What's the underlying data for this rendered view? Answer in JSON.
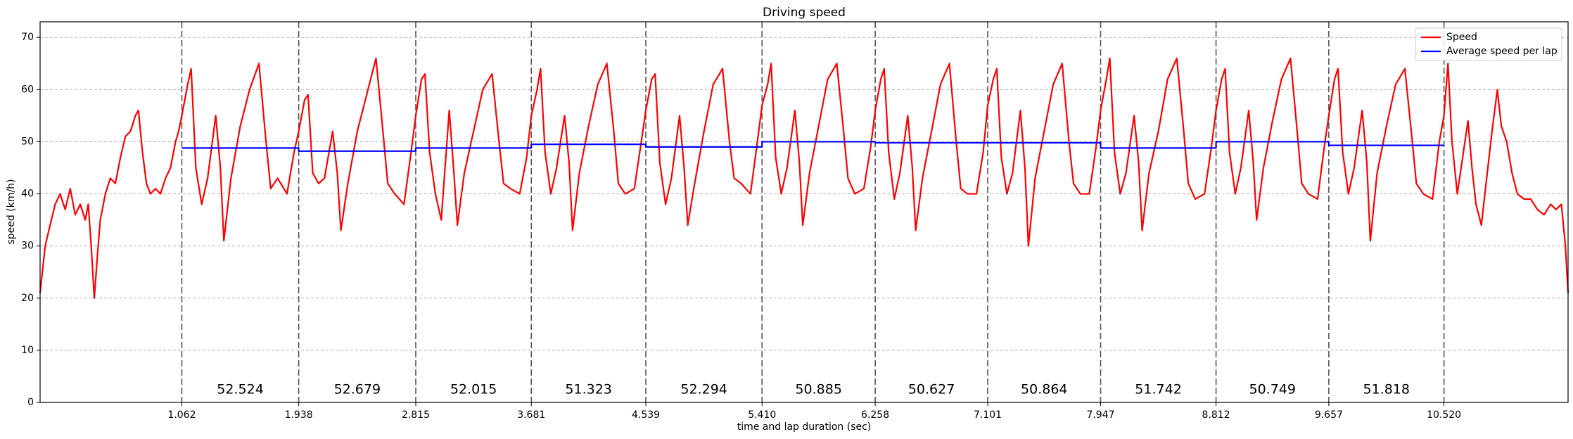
{
  "chart_data": {
    "type": "line",
    "title": "Driving speed",
    "x_label": "time and lap duration (sec)",
    "y_label": "speed (km/h)",
    "xlim": [
      0,
      11.45
    ],
    "ylim": [
      0,
      73
    ],
    "xticks": [
      1.062,
      1.938,
      2.815,
      3.681,
      4.539,
      {
        "value": 5.41,
        "label": "5.410"
      },
      6.258,
      7.101,
      7.947,
      8.812,
      9.657,
      {
        "value": 10.52,
        "label": "10.520"
      }
    ],
    "yticks": [
      0,
      10,
      20,
      30,
      40,
      50,
      60,
      70
    ],
    "grid": true,
    "lap_lines": true,
    "legend": "upper right",
    "lap_labels": [
      "52.524",
      "52.679",
      "52.015",
      "51.323",
      "52.294",
      "50.885",
      "50.627",
      "50.864",
      "51.742",
      "50.749",
      "51.818"
    ],
    "series": [
      {
        "name": "Speed",
        "color": "#ff0000",
        "x": [
          0,
          0.038,
          0.075,
          0.113,
          0.15,
          0.188,
          0.226,
          0.263,
          0.301,
          0.338,
          0.361,
          0.383,
          0.406,
          0.429,
          0.451,
          0.489,
          0.526,
          0.564,
          0.602,
          0.639,
          0.677,
          0.714,
          0.737,
          0.767,
          0.797,
          0.827,
          0.865,
          0.902,
          0.94,
          0.977,
          1.015,
          1.038,
          1.062,
          1.106,
          1.132,
          1.167,
          1.211,
          1.255,
          1.316,
          1.351,
          1.377,
          1.43,
          1.5,
          1.57,
          1.64,
          1.693,
          1.728,
          1.78,
          1.85,
          1.903,
          1.938,
          1.982,
          2.008,
          2.043,
          2.087,
          2.131,
          2.192,
          2.227,
          2.254,
          2.306,
          2.377,
          2.447,
          2.517,
          2.569,
          2.605,
          2.657,
          2.727,
          2.78,
          2.815,
          2.858,
          2.884,
          2.919,
          2.962,
          3.006,
          3.066,
          3.101,
          3.127,
          3.179,
          3.248,
          3.317,
          3.387,
          3.439,
          3.473,
          3.525,
          3.594,
          3.646,
          3.681,
          3.724,
          3.75,
          3.784,
          3.827,
          3.87,
          3.93,
          3.964,
          3.99,
          4.041,
          4.11,
          4.179,
          4.247,
          4.299,
          4.333,
          4.385,
          4.453,
          4.505,
          4.539,
          4.583,
          4.609,
          4.644,
          4.687,
          4.731,
          4.792,
          4.826,
          4.853,
          4.905,
          4.975,
          5.044,
          5.114,
          5.166,
          5.201,
          5.253,
          5.323,
          5.375,
          5.41,
          5.452,
          5.478,
          5.512,
          5.554,
          5.597,
          5.656,
          5.69,
          5.715,
          5.766,
          5.834,
          5.902,
          5.97,
          6.021,
          6.054,
          6.105,
          6.173,
          6.224,
          6.258,
          6.3,
          6.325,
          6.359,
          6.401,
          6.443,
          6.502,
          6.536,
          6.561,
          6.612,
          6.68,
          6.747,
          6.814,
          6.865,
          6.899,
          6.949,
          7.017,
          7.067,
          7.101,
          7.143,
          7.169,
          7.203,
          7.245,
          7.287,
          7.346,
          7.38,
          7.406,
          7.456,
          7.524,
          7.592,
          7.659,
          7.71,
          7.744,
          7.795,
          7.862,
          7.913,
          7.947,
          7.99,
          8.016,
          8.051,
          8.094,
          8.137,
          8.198,
          8.232,
          8.258,
          8.31,
          8.38,
          8.449,
          8.518,
          8.57,
          8.604,
          8.656,
          8.726,
          8.777,
          8.812,
          8.854,
          8.88,
          8.913,
          8.956,
          8.998,
          9.057,
          9.091,
          9.116,
          9.167,
          9.235,
          9.302,
          9.37,
          9.42,
          9.454,
          9.505,
          9.573,
          9.623,
          9.657,
          9.7,
          9.726,
          9.761,
          9.804,
          9.847,
          9.907,
          9.942,
          9.968,
          10.019,
          10.089,
          10.158,
          10.227,
          10.279,
          10.313,
          10.365,
          10.434,
          10.485,
          10.52,
          10.55,
          10.58,
          10.62,
          10.66,
          10.7,
          10.73,
          10.76,
          10.8,
          10.84,
          10.88,
          10.92,
          10.95,
          10.99,
          11.03,
          11.07,
          11.12,
          11.17,
          11.22,
          11.27,
          11.32,
          11.36,
          11.4,
          11.43,
          11.45
        ],
        "values": [
          21,
          30,
          34,
          38,
          40,
          37,
          41,
          36,
          38,
          35,
          38,
          30,
          20,
          28,
          35,
          40,
          43,
          42,
          47,
          51,
          52,
          55,
          56,
          48,
          42,
          40,
          41,
          40,
          43,
          45,
          50,
          52,
          55,
          61,
          64,
          45,
          38,
          43,
          55,
          45,
          31,
          43,
          53,
          60,
          65,
          50,
          41,
          43,
          40,
          48,
          52,
          58,
          59,
          44,
          42,
          43,
          52,
          44,
          33,
          42,
          52,
          59,
          66,
          52,
          42,
          40,
          38,
          48,
          55,
          62,
          63,
          48,
          40,
          35,
          56,
          44,
          34,
          44,
          52,
          60,
          63,
          50,
          42,
          41,
          40,
          47,
          55,
          60,
          64,
          48,
          40,
          45,
          55,
          46,
          33,
          44,
          53,
          61,
          65,
          52,
          42,
          40,
          41,
          50,
          56,
          62,
          63,
          46,
          38,
          43,
          55,
          45,
          34,
          42,
          52,
          61,
          64,
          50,
          43,
          42,
          40,
          50,
          57,
          61,
          65,
          47,
          40,
          45,
          56,
          46,
          34,
          44,
          53,
          62,
          65,
          52,
          43,
          40,
          41,
          49,
          56,
          62,
          64,
          48,
          39,
          44,
          55,
          45,
          33,
          43,
          52,
          61,
          65,
          50,
          41,
          40,
          40,
          48,
          57,
          62,
          64,
          47,
          40,
          44,
          56,
          45,
          30,
          43,
          52,
          61,
          65,
          50,
          42,
          40,
          40,
          49,
          56,
          62,
          66,
          48,
          40,
          44,
          55,
          46,
          33,
          44,
          52,
          62,
          66,
          52,
          42,
          39,
          40,
          49,
          56,
          62,
          64,
          48,
          40,
          45,
          56,
          46,
          35,
          45,
          54,
          62,
          66,
          52,
          42,
          40,
          39,
          49,
          55,
          62,
          64,
          48,
          40,
          45,
          56,
          46,
          31,
          44,
          53,
          61,
          64,
          51,
          42,
          40,
          39,
          50,
          55,
          65,
          50,
          40,
          47,
          54,
          45,
          38,
          34,
          43,
          52,
          60,
          53,
          50,
          44,
          40,
          39,
          39,
          37,
          36,
          38,
          37,
          38,
          30,
          21
        ]
      },
      {
        "name": "Average speed per lap",
        "color": "#0000ff",
        "x": [
          1.062,
          1.938,
          1.938,
          2.815,
          2.815,
          3.681,
          3.681,
          4.539,
          4.539,
          5.41,
          5.41,
          6.258,
          6.258,
          7.101,
          7.101,
          7.947,
          7.947,
          8.812,
          8.812,
          9.657,
          9.657,
          10.52
        ],
        "values": [
          48.8,
          48.8,
          48.2,
          48.2,
          48.8,
          48.8,
          49.5,
          49.5,
          49.0,
          49.0,
          50.0,
          50.0,
          49.8,
          49.8,
          49.8,
          49.8,
          48.8,
          48.8,
          50.0,
          50.0,
          49.3,
          49.3
        ]
      }
    ]
  }
}
